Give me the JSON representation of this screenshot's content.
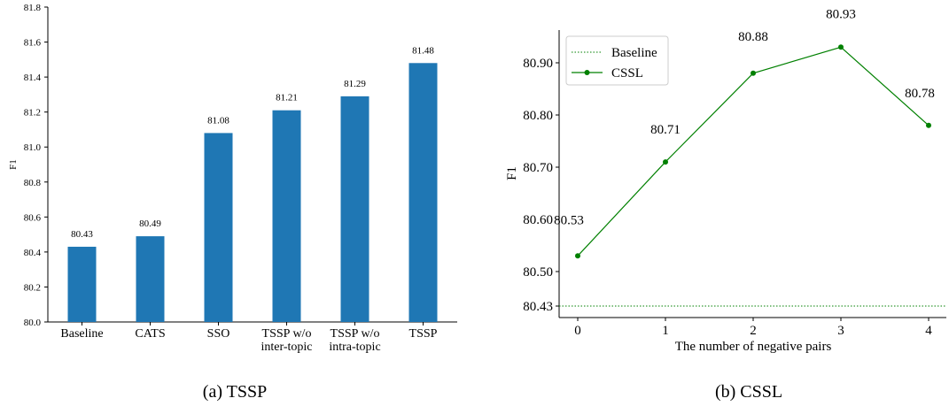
{
  "chart_data": [
    {
      "type": "bar",
      "categories": [
        [
          "Baseline"
        ],
        [
          "CATS"
        ],
        [
          "SSO"
        ],
        [
          "TSSP w/o",
          "inter-topic"
        ],
        [
          "TSSP w/o",
          "intra-topic"
        ],
        [
          "TSSP"
        ]
      ],
      "values": [
        80.43,
        80.49,
        81.08,
        81.21,
        81.29,
        81.48
      ],
      "value_labels": [
        "80.43",
        "80.49",
        "81.08",
        "81.21",
        "81.29",
        "81.48"
      ],
      "ylabel": "F1",
      "ylim": [
        80.0,
        81.8
      ],
      "yticks": [
        "80.0",
        "80.2",
        "80.4",
        "80.6",
        "80.8",
        "81.0",
        "81.2",
        "81.4",
        "81.6",
        "81.8"
      ],
      "bar_color": "#1f77b4",
      "caption": "(a)  TSSP"
    },
    {
      "type": "line",
      "x": [
        0,
        1,
        2,
        3,
        4
      ],
      "xticks": [
        "0",
        "1",
        "2",
        "3",
        "4"
      ],
      "series": [
        {
          "name": "Baseline",
          "style": "dotted",
          "values": [
            80.43,
            80.43,
            80.43,
            80.43,
            80.43
          ]
        },
        {
          "name": "CSSL",
          "style": "solid-marker",
          "values": [
            80.53,
            80.71,
            80.88,
            80.93,
            80.78
          ]
        }
      ],
      "point_labels": [
        "80.53",
        "80.71",
        "80.88",
        "80.93",
        "80.78"
      ],
      "xlabel": "The number of negative pairs",
      "ylabel": "F1",
      "yticks": [
        "80.43",
        "80.50",
        "80.60",
        "80.70",
        "80.80",
        "80.90"
      ],
      "line_color": "#008000",
      "legend": "top-left",
      "caption": "(b)  CSSL"
    }
  ]
}
